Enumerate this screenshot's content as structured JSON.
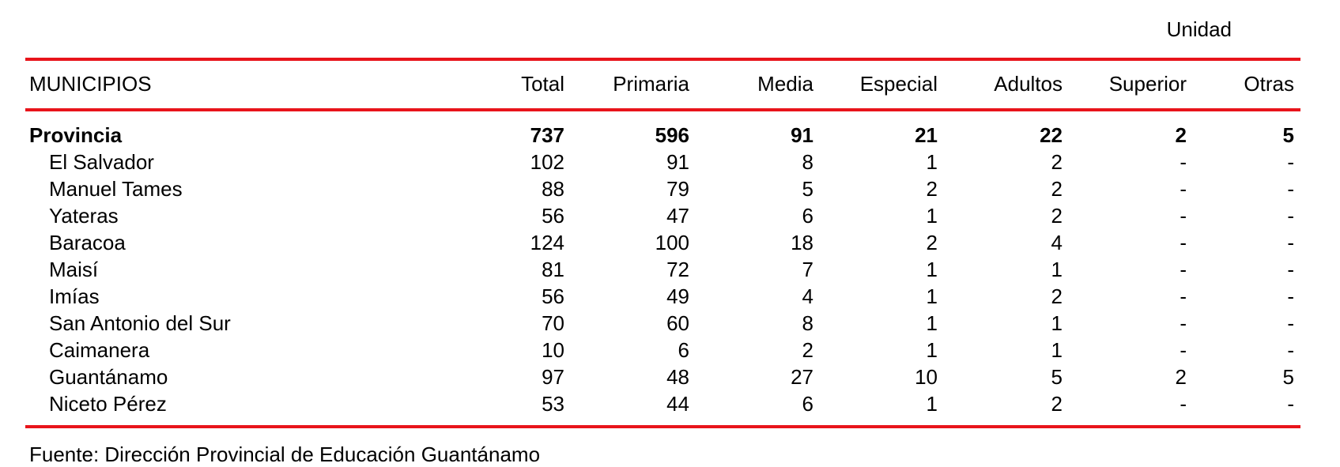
{
  "unit_label": "Unidad",
  "headers": {
    "name": "MUNICIPIOS",
    "total": "Total",
    "primaria": "Primaria",
    "media": "Media",
    "especial": "Especial",
    "adultos": "Adultos",
    "superior": "Superior",
    "otras": "Otras"
  },
  "rows": [
    {
      "name": "Provincia",
      "total": "737",
      "primaria": "596",
      "media": "91",
      "especial": "21",
      "adultos": "22",
      "superior": "2",
      "otras": "5"
    },
    {
      "name": "El Salvador",
      "total": "102",
      "primaria": "91",
      "media": "8",
      "especial": "1",
      "adultos": "2",
      "superior": "-",
      "otras": "-"
    },
    {
      "name": "Manuel Tames",
      "total": "88",
      "primaria": "79",
      "media": "5",
      "especial": "2",
      "adultos": "2",
      "superior": "-",
      "otras": "-"
    },
    {
      "name": "Yateras",
      "total": "56",
      "primaria": "47",
      "media": "6",
      "especial": "1",
      "adultos": "2",
      "superior": "-",
      "otras": "-"
    },
    {
      "name": "Baracoa",
      "total": "124",
      "primaria": "100",
      "media": "18",
      "especial": "2",
      "adultos": "4",
      "superior": "-",
      "otras": "-"
    },
    {
      "name": "Maisí",
      "total": "81",
      "primaria": "72",
      "media": "7",
      "especial": "1",
      "adultos": "1",
      "superior": "-",
      "otras": "-"
    },
    {
      "name": "Imías",
      "total": "56",
      "primaria": "49",
      "media": "4",
      "especial": "1",
      "adultos": "2",
      "superior": "-",
      "otras": "-"
    },
    {
      "name": "San Antonio del Sur",
      "total": "70",
      "primaria": "60",
      "media": "8",
      "especial": "1",
      "adultos": "1",
      "superior": "-",
      "otras": "-"
    },
    {
      "name": "Caimanera",
      "total": "10",
      "primaria": "6",
      "media": "2",
      "especial": "1",
      "adultos": "1",
      "superior": "-",
      "otras": "-"
    },
    {
      "name": "Guantánamo",
      "total": "97",
      "primaria": "48",
      "media": "27",
      "especial": "10",
      "adultos": "5",
      "superior": "2",
      "otras": "5"
    },
    {
      "name": "Niceto Pérez",
      "total": "53",
      "primaria": "44",
      "media": "6",
      "especial": "1",
      "adultos": "2",
      "superior": "-",
      "otras": "-"
    }
  ],
  "source": "Fuente: Dirección Provincial de Educación Guantánamo",
  "colors": {
    "rule": "#e8141b"
  }
}
